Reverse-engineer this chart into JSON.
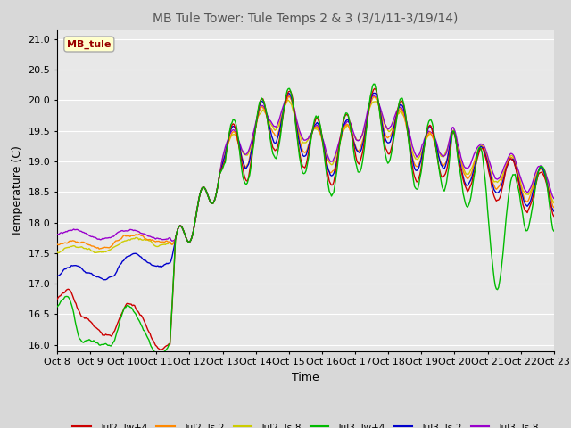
{
  "title": "MB Tule Tower: Tule Temps 2 & 3 (3/1/11-3/19/14)",
  "xlabel": "Time",
  "ylabel": "Temperature (C)",
  "ylim": [
    15.9,
    21.15
  ],
  "xlim": [
    0,
    15
  ],
  "xtick_labels": [
    "Oct 8",
    "Oct 9",
    "Oct 10",
    "Oct 11",
    "Oct 12",
    "Oct 13",
    "Oct 14",
    "Oct 15",
    "Oct 16",
    "Oct 17",
    "Oct 18",
    "Oct 19",
    "Oct 20",
    "Oct 21",
    "Oct 22",
    "Oct 23"
  ],
  "ytick_vals": [
    16.0,
    16.5,
    17.0,
    17.5,
    18.0,
    18.5,
    19.0,
    19.5,
    20.0,
    20.5,
    21.0
  ],
  "legend_label": "MB_tule",
  "series_colors": {
    "Tul2_Tw+4": "#cc0000",
    "Tul2_Ts-2": "#ff8800",
    "Tul2_Ts-8": "#cccc00",
    "Tul3_Tw+4": "#00bb00",
    "Tul3_Ts-2": "#0000cc",
    "Tul3_Ts-8": "#9900cc"
  },
  "background_color": "#d8d8d8",
  "plot_bg_color": "#e8e8e8",
  "grid_color": "#ffffff",
  "title_color": "#555555",
  "title_fontsize": 10,
  "axis_fontsize": 9,
  "tick_fontsize": 8
}
